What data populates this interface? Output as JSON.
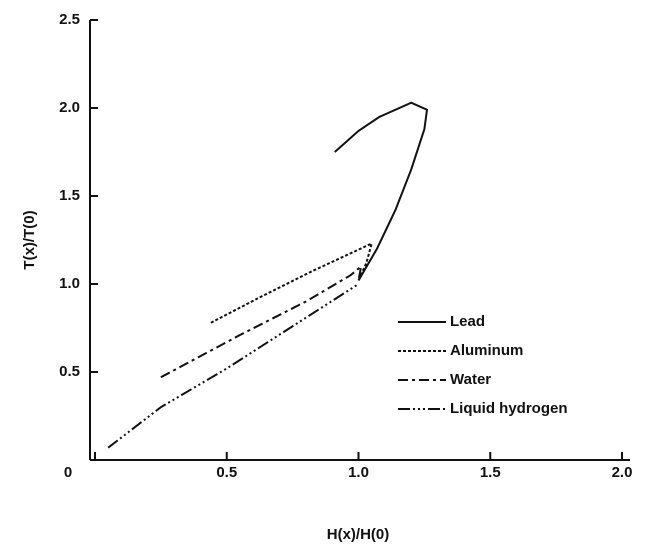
{
  "chart_data": {
    "type": "line",
    "xlabel": "H(x)/H(0)",
    "ylabel": "T(x)/T(0)",
    "xlim": [
      0,
      2.0
    ],
    "ylim": [
      0,
      2.5
    ],
    "xticks": [
      0,
      {
        "value": 0.5,
        "label": "0.5"
      },
      {
        "value": 1.0,
        "label": "1.0"
      },
      {
        "value": 1.5,
        "label": "1.5"
      },
      {
        "value": 2.0,
        "label": "2.0"
      }
    ],
    "yticks": [
      {
        "value": 0.5,
        "label": "0.5"
      },
      {
        "value": 1.0,
        "label": "1.0"
      },
      {
        "value": 1.5,
        "label": "1.5"
      },
      {
        "value": 2.0,
        "label": "2.0"
      },
      {
        "value": 2.5,
        "label": "2.5"
      }
    ],
    "legend": "right",
    "series": [
      {
        "name": "Lead",
        "color": "#111111",
        "dash": "none",
        "x": [
          0.91,
          1.0,
          1.08,
          1.2,
          1.26,
          1.25,
          1.2,
          1.14,
          1.07,
          1.0
        ],
        "values": [
          1.75,
          1.87,
          1.95,
          2.03,
          1.99,
          1.88,
          1.65,
          1.42,
          1.2,
          1.02
        ]
      },
      {
        "name": "Aluminum",
        "color": "#111111",
        "dash": "3,2",
        "x": [
          0.44,
          0.62,
          0.82,
          1.05,
          1.03,
          1.0
        ],
        "values": [
          0.78,
          0.92,
          1.07,
          1.23,
          1.12,
          1.02
        ]
      },
      {
        "name": "Water",
        "color": "#111111",
        "dash": "10,4,3,4",
        "x": [
          0.25,
          0.55,
          0.8,
          0.97,
          1.01,
          1.0
        ],
        "values": [
          0.47,
          0.71,
          0.9,
          1.05,
          1.1,
          1.02
        ]
      },
      {
        "name": "Liquid hydrogen",
        "color": "#111111",
        "dash": "12,3,2,3,2,3,2,3",
        "x": [
          0.05,
          0.25,
          0.5,
          0.75,
          1.0
        ],
        "values": [
          0.07,
          0.3,
          0.52,
          0.76,
          1.0
        ]
      }
    ]
  }
}
